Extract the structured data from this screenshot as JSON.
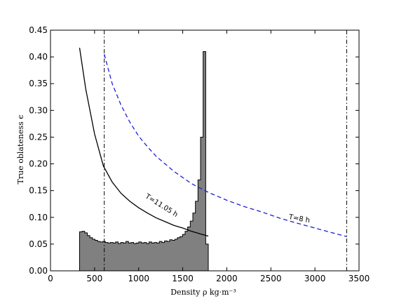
{
  "chart_data": {
    "type": "line",
    "xlabel": "Density ρ kg·m⁻³",
    "ylabel": "True oblateness ϵ",
    "xlim": [
      0,
      3500
    ],
    "ylim": [
      0,
      0.45
    ],
    "xticks": [
      0,
      500,
      1000,
      1500,
      2000,
      2500,
      3000,
      3500
    ],
    "yticks": [
      0.0,
      0.05,
      0.1,
      0.15,
      0.2,
      0.25,
      0.3,
      0.35,
      0.4,
      0.45
    ],
    "xtick_labels": [
      "0",
      "500",
      "1000",
      "1500",
      "2000",
      "2500",
      "3000",
      "3500"
    ],
    "ytick_labels": [
      "0.00",
      "0.05",
      "0.10",
      "0.15",
      "0.20",
      "0.25",
      "0.30",
      "0.35",
      "0.40",
      "0.45"
    ],
    "grid": false,
    "series": [
      {
        "name": "T=11.05 h",
        "style": "solid",
        "color": "#000000",
        "x": [
          330,
          400,
          500,
          600,
          700,
          800,
          900,
          1000,
          1100,
          1200,
          1300,
          1400,
          1500,
          1600,
          1700,
          1790
        ],
        "y": [
          0.417,
          0.34,
          0.256,
          0.196,
          0.166,
          0.145,
          0.13,
          0.118,
          0.108,
          0.099,
          0.092,
          0.085,
          0.08,
          0.074,
          0.069,
          0.065
        ]
      },
      {
        "name": "T=8 h",
        "style": "dashed",
        "color": "#1f1fd8",
        "x": [
          610,
          700,
          800,
          900,
          1000,
          1100,
          1200,
          1400,
          1600,
          1800,
          2000,
          2200,
          2400,
          2600,
          2800,
          3000,
          3200,
          3360
        ],
        "y": [
          0.405,
          0.35,
          0.31,
          0.278,
          0.252,
          0.232,
          0.214,
          0.186,
          0.163,
          0.146,
          0.132,
          0.12,
          0.11,
          0.0985,
          0.089,
          0.08,
          0.071,
          0.064
        ]
      }
    ],
    "histogram": {
      "color": "#808080",
      "edge_color": "#000000",
      "x_start": 330,
      "x_end": 1790,
      "values": [
        0.073,
        0.074,
        0.071,
        0.066,
        0.062,
        0.059,
        0.057,
        0.055,
        0.054,
        0.055,
        0.053,
        0.052,
        0.053,
        0.052,
        0.054,
        0.051,
        0.053,
        0.052,
        0.055,
        0.052,
        0.053,
        0.051,
        0.052,
        0.054,
        0.052,
        0.053,
        0.051,
        0.054,
        0.052,
        0.053,
        0.052,
        0.055,
        0.053,
        0.056,
        0.055,
        0.058,
        0.057,
        0.059,
        0.062,
        0.064,
        0.068,
        0.074,
        0.082,
        0.093,
        0.108,
        0.13,
        0.17,
        0.25,
        0.41,
        0.05
      ]
    },
    "vertical_lines": [
      {
        "x": 610,
        "style": "dashdot",
        "color": "#000000"
      },
      {
        "x": 3360,
        "style": "dashdot",
        "color": "#000000"
      }
    ],
    "annotations": [
      {
        "text": "T=11.05 h",
        "x": 1070,
        "y": 0.137,
        "rotation": 32
      },
      {
        "text": "T=8 h",
        "x": 2700,
        "y": 0.097,
        "rotation": 10
      }
    ]
  }
}
